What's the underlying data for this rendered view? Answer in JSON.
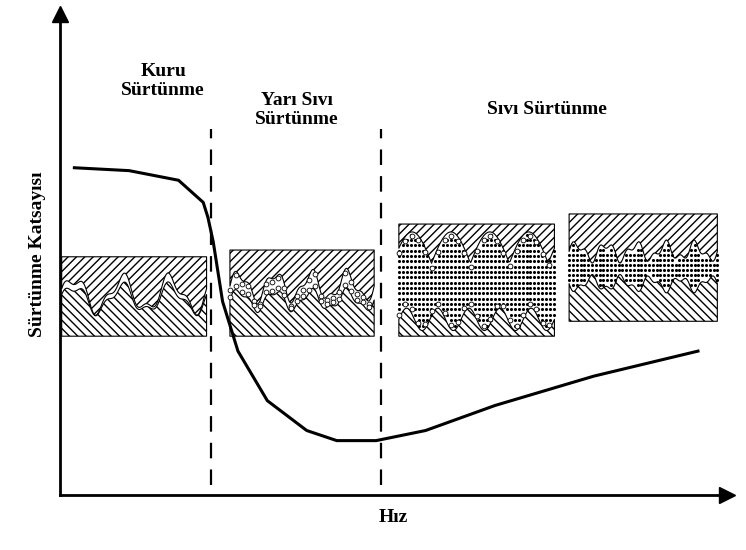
{
  "chart_data": {
    "type": "line",
    "xlabel": "Hız",
    "ylabel": "Sürtünme Katsayısı",
    "x": [
      2.2,
      10.4,
      17.8,
      21.5,
      22.2,
      23.0,
      24.4,
      26.7,
      31.1,
      37.0,
      41.5,
      47.4,
      54.8,
      65.2,
      80.0,
      95.6
    ],
    "values": [
      68.0,
      67.4,
      65.4,
      60.8,
      57.7,
      52.6,
      40.2,
      29.9,
      19.6,
      13.4,
      11.3,
      11.3,
      13.4,
      18.6,
      24.7,
      29.9
    ],
    "color": "#000000",
    "xlim": [
      0,
      100
    ],
    "ylim": [
      0,
      100
    ],
    "xticks": [],
    "yticks": [],
    "tick_labels": false,
    "boundaries": [
      22.7,
      48.1
    ],
    "regions": [
      "Kuru\nSürtünme",
      "Yarı Sıvı\nSürtünme",
      "Sıvı Sürtünme"
    ]
  }
}
